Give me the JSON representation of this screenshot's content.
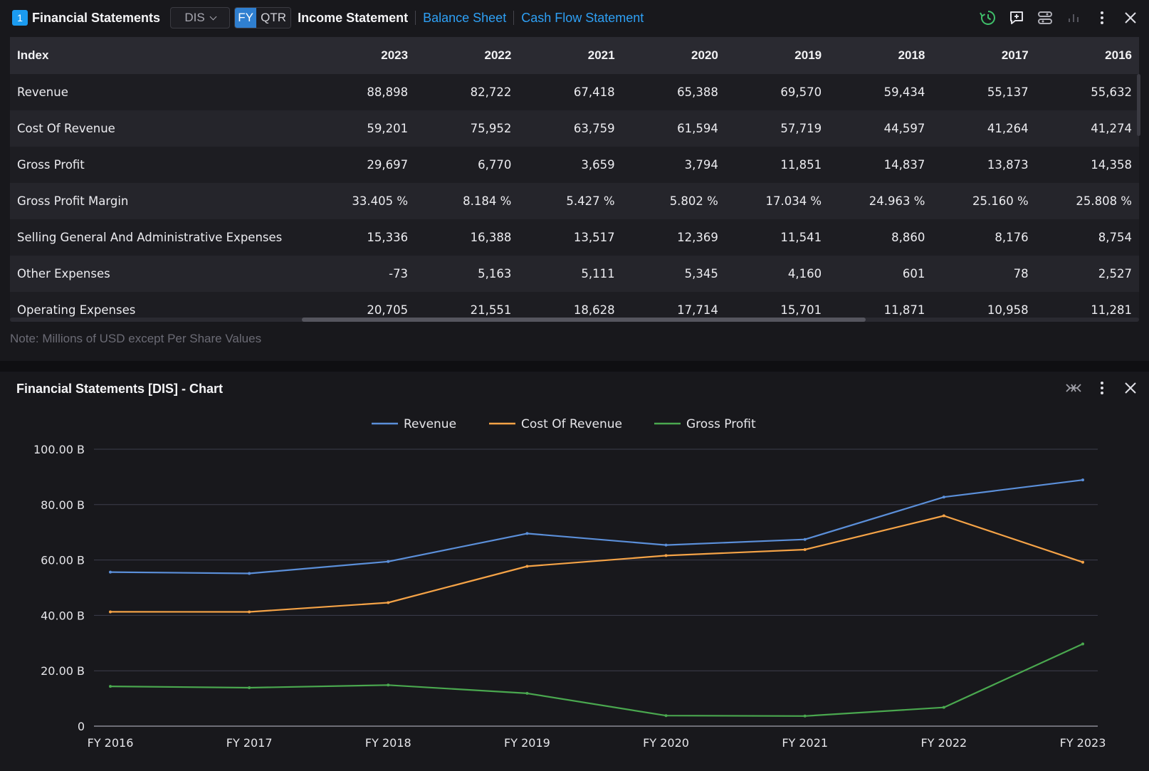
{
  "header": {
    "badge": "1",
    "title": "Financial Statements",
    "ticker": "DIS",
    "period": {
      "fy": "FY",
      "qtr": "QTR",
      "selected": "FY"
    },
    "tabs": [
      {
        "label": "Income Statement",
        "active": true
      },
      {
        "label": "Balance Sheet",
        "active": false
      },
      {
        "label": "Cash Flow Statement",
        "active": false
      }
    ],
    "icons": [
      "history-icon",
      "feedback-icon",
      "settings-icon",
      "chart-toggle-icon",
      "more-icon",
      "close-icon"
    ]
  },
  "table": {
    "columns": [
      "Index",
      "2023",
      "2022",
      "2021",
      "2020",
      "2019",
      "2018",
      "2017",
      "2016"
    ],
    "rows": [
      [
        "Revenue",
        "88,898",
        "82,722",
        "67,418",
        "65,388",
        "69,570",
        "59,434",
        "55,137",
        "55,632"
      ],
      [
        "Cost Of Revenue",
        "59,201",
        "75,952",
        "63,759",
        "61,594",
        "57,719",
        "44,597",
        "41,264",
        "41,274"
      ],
      [
        "Gross Profit",
        "29,697",
        "6,770",
        "3,659",
        "3,794",
        "11,851",
        "14,837",
        "13,873",
        "14,358"
      ],
      [
        "Gross Profit Margin",
        "33.405 %",
        "8.184 %",
        "5.427 %",
        "5.802 %",
        "17.034 %",
        "24.963 %",
        "25.160 %",
        "25.808 %"
      ],
      [
        "Selling General And Administrative Expenses",
        "15,336",
        "16,388",
        "13,517",
        "12,369",
        "11,541",
        "8,860",
        "8,176",
        "8,754"
      ],
      [
        "Other Expenses",
        "-73",
        "5,163",
        "5,111",
        "5,345",
        "4,160",
        "601",
        "78",
        "2,527"
      ],
      [
        "Operating Expenses",
        "20,705",
        "21,551",
        "18,628",
        "17,714",
        "15,701",
        "11,871",
        "10,958",
        "11,281"
      ]
    ],
    "note": "Note: Millions of USD except Per Share Values"
  },
  "chart_panel": {
    "title": "Financial Statements [DIS] - Chart",
    "icons": [
      "collapse-icon",
      "more-icon",
      "close-icon"
    ]
  },
  "chart_data": {
    "type": "line",
    "categories": [
      "FY 2016",
      "FY 2017",
      "FY 2018",
      "FY 2019",
      "FY 2020",
      "FY 2021",
      "FY 2022",
      "FY 2023"
    ],
    "series": [
      {
        "name": "Revenue",
        "color": "#5b8fd9",
        "values": [
          55632,
          55137,
          59434,
          69570,
          65388,
          67418,
          82722,
          88898
        ]
      },
      {
        "name": "Cost Of Revenue",
        "color": "#f5a347",
        "values": [
          41274,
          41264,
          44597,
          57719,
          61594,
          63759,
          75952,
          59201
        ]
      },
      {
        "name": "Gross Profit",
        "color": "#4aa84f",
        "values": [
          14358,
          13873,
          14837,
          11851,
          3794,
          3659,
          6770,
          29697
        ]
      }
    ],
    "yticks": [
      0,
      20000,
      40000,
      60000,
      80000,
      100000
    ],
    "ytick_labels": [
      "0",
      "20.00 B",
      "40.00 B",
      "60.00 B",
      "80.00 B",
      "100.00 B"
    ],
    "ylim": [
      0,
      100000
    ],
    "grid": true,
    "legend": "top-center"
  }
}
